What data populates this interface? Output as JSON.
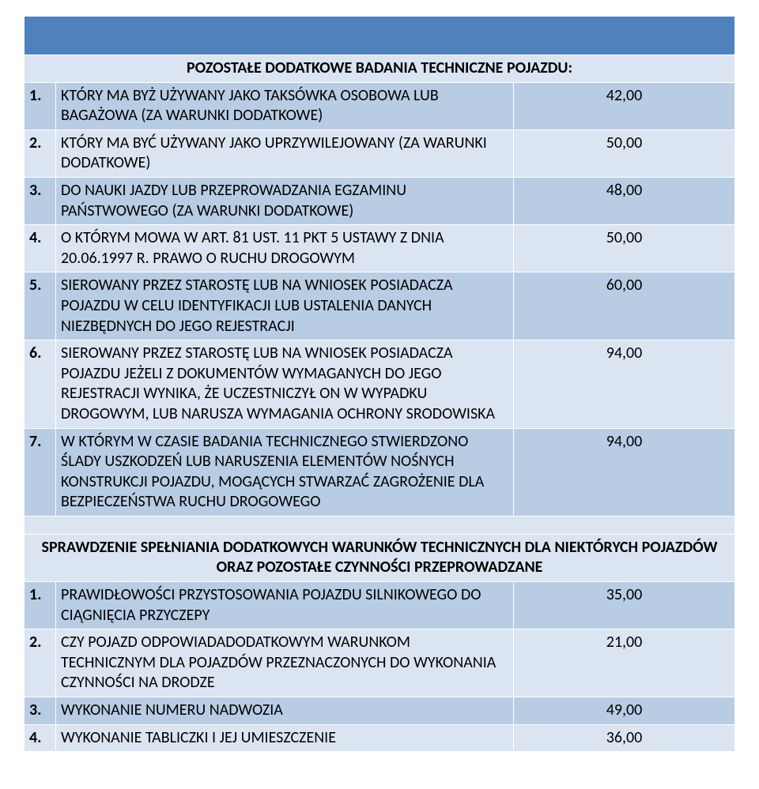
{
  "colors": {
    "header_bg": "#4f81bd",
    "odd_bg": "#dbe5f1",
    "even_bg": "#b8cce4",
    "border": "#ffffff",
    "text": "#000000"
  },
  "font": {
    "family": "Calibri, Arial, sans-serif",
    "size_pt": 15
  },
  "section1": {
    "title": "POZOSTAŁE DODATKOWE BADANIA TECHNICZNE POJAZDU:",
    "rows": [
      {
        "n": "1.",
        "desc": "KTÓRY MA BYŻ UŻYWANY JAKO TAKSÓWKA OSOBOWA LUB BAGAŻOWA (ZA WARUNKI DODATKOWE)",
        "price": "42,00"
      },
      {
        "n": "2.",
        "desc": "KTÓRY MA BYĆ UŻYWANY JAKO UPRZYWILEJOWANY  (ZA WARUNKI DODATKOWE)",
        "price": "50,00"
      },
      {
        "n": "3.",
        "desc": "DO NAUKI JAZDY LUB PRZEPROWADZANIA EGZAMINU PAŃSTWOWEGO (ZA WARUNKI DODATKOWE)",
        "price": "48,00"
      },
      {
        "n": "4.",
        "desc": "O KTÓRYM MOWA W ART. 81 UST. 11 PKT 5 USTAWY Z DNIA 20.06.1997 R. PRAWO O RUCHU DROGOWYM",
        "price": "50,00"
      },
      {
        "n": "5.",
        "desc": "SIEROWANY PRZEZ STAROSTĘ LUB NA WNIOSEK POSIADACZA POJAZDU W CELU IDENTYFIKACJI LUB USTALENIA DANYCH NIEZBĘDNYCH DO JEGO REJESTRACJI",
        "price": "60,00"
      },
      {
        "n": "6.",
        "desc": "SIEROWANY PRZEZ STAROSTĘ LUB NA WNIOSEK POSIADACZA POJAZDU JEŻELI Z DOKUMENTÓW WYMAGANYCH DO JEGO REJESTRACJI WYNIKA, ŻE UCZESTNICZYŁ ON W WYPADKU DROGOWYM, LUB NARUSZA WYMAGANIA OCHRONY SRODOWISKA",
        "price": "94,00"
      },
      {
        "n": "7.",
        "desc": "W KTÓRYM W CZASIE BADANIA TECHNICZNEGO STWIERDZONO ŚLADY USZKODZEŃ LUB NARUSZENIA ELEMENTÓW NOŚNYCH KONSTRUKCJI POJAZDU, MOGĄCYCH STWARZAĆ ZAGROŻENIE DLA BEZPIECZEŃSTWA RUCHU DROGOWEGO",
        "price": "94,00"
      }
    ]
  },
  "section2": {
    "title": "SPRAWDZENIE SPEŁNIANIA DODATKOWYCH WARUNKÓW TECHNICZNYCH DLA NIEKTÓRYCH POJAZDÓW ORAZ POZOSTAŁE CZYNNOŚCI PRZEPROWADZANE",
    "rows": [
      {
        "n": "1.",
        "desc": "PRAWIDŁOWOŚCI PRZYSTOSOWANIA POJAZDU SILNIKOWEGO DO CIĄGNIĘCIA PRZYCZEPY",
        "price": "35,00"
      },
      {
        "n": "2.",
        "desc": "CZY POJAZD ODPOWIADADODATKOWYM WARUNKOM TECHNICZNYM DLA POJAZDÓW PRZEZNACZONYCH DO WYKONANIA CZYNNOŚCI NA DRODZE",
        "price": "21,00"
      },
      {
        "n": "3.",
        "desc": "WYKONANIE NUMERU NADWOZIA",
        "price": "49,00"
      },
      {
        "n": "4.",
        "desc": "WYKONANIE TABLICZKI I JEJ UMIESZCZENIE",
        "price": "36,00"
      }
    ]
  }
}
